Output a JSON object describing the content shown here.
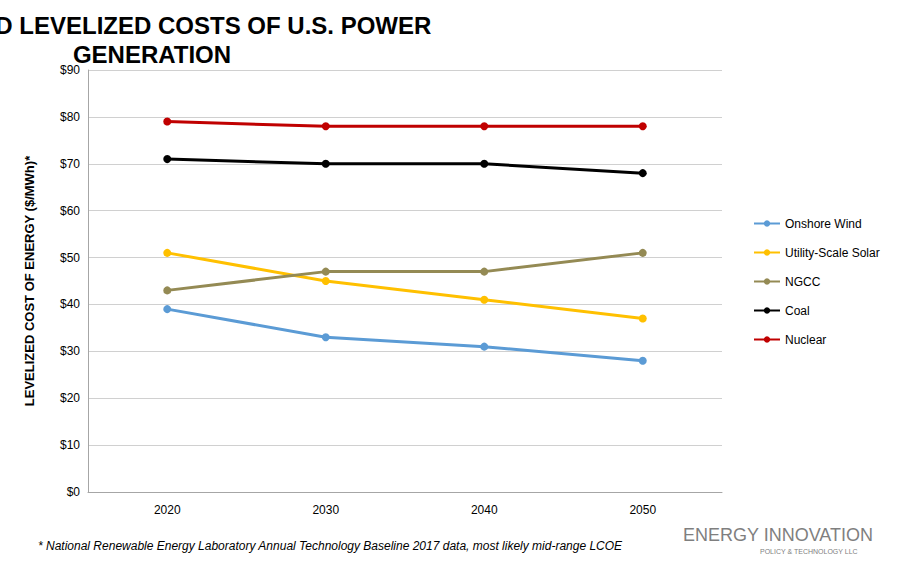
{
  "chart_data": {
    "type": "line",
    "title": "PROJECTED LEVELIZED COSTS OF U.S. POWER GENERATION",
    "y_label": "LEVELIZED COST OF ENERGY ($/MWh)*",
    "categories": [
      "2020",
      "2030",
      "2040",
      "2050"
    ],
    "series": [
      {
        "name": "Onshore Wind",
        "color": "#5b9bd5",
        "marker": "circle",
        "line_style": "solid",
        "values": [
          39,
          33,
          31,
          28
        ]
      },
      {
        "name": "Utility-Scale Solar",
        "color": "#ffc000",
        "marker": "circle",
        "line_style": "solid",
        "values": [
          51,
          45,
          41,
          37
        ]
      },
      {
        "name": "NGCC",
        "color": "#948a54",
        "marker": "circle",
        "line_style": "solid",
        "values": [
          43,
          47,
          47,
          51
        ]
      },
      {
        "name": "Coal",
        "color": "#000000",
        "marker": "circle",
        "line_style": "solid",
        "values": [
          71,
          70,
          70,
          68
        ]
      },
      {
        "name": "Nuclear",
        "color": "#c00000",
        "marker": "circle",
        "line_style": "solid",
        "values": [
          79,
          78,
          78,
          78
        ]
      }
    ],
    "ylim": [
      0,
      90
    ],
    "yticks": [
      {
        "value": 0,
        "label": "$0"
      },
      {
        "value": 10,
        "label": "$10"
      },
      {
        "value": 20,
        "label": "$20"
      },
      {
        "value": 30,
        "label": "$30"
      },
      {
        "value": 40,
        "label": "$40"
      },
      {
        "value": 50,
        "label": "$50"
      },
      {
        "value": 60,
        "label": "$60"
      },
      {
        "value": 70,
        "label": "$70"
      },
      {
        "value": 80,
        "label": "$80"
      },
      {
        "value": 90,
        "label": "$90"
      }
    ],
    "grid": true,
    "legend": "right",
    "annotations": [
      "* National Renewable Energy Laboratory Annual Technology Baseline 2017 data, most likely mid-range LCOE",
      "ENERGY INNOVATION",
      "POLICY & TECHNOLOGY LLC"
    ]
  }
}
